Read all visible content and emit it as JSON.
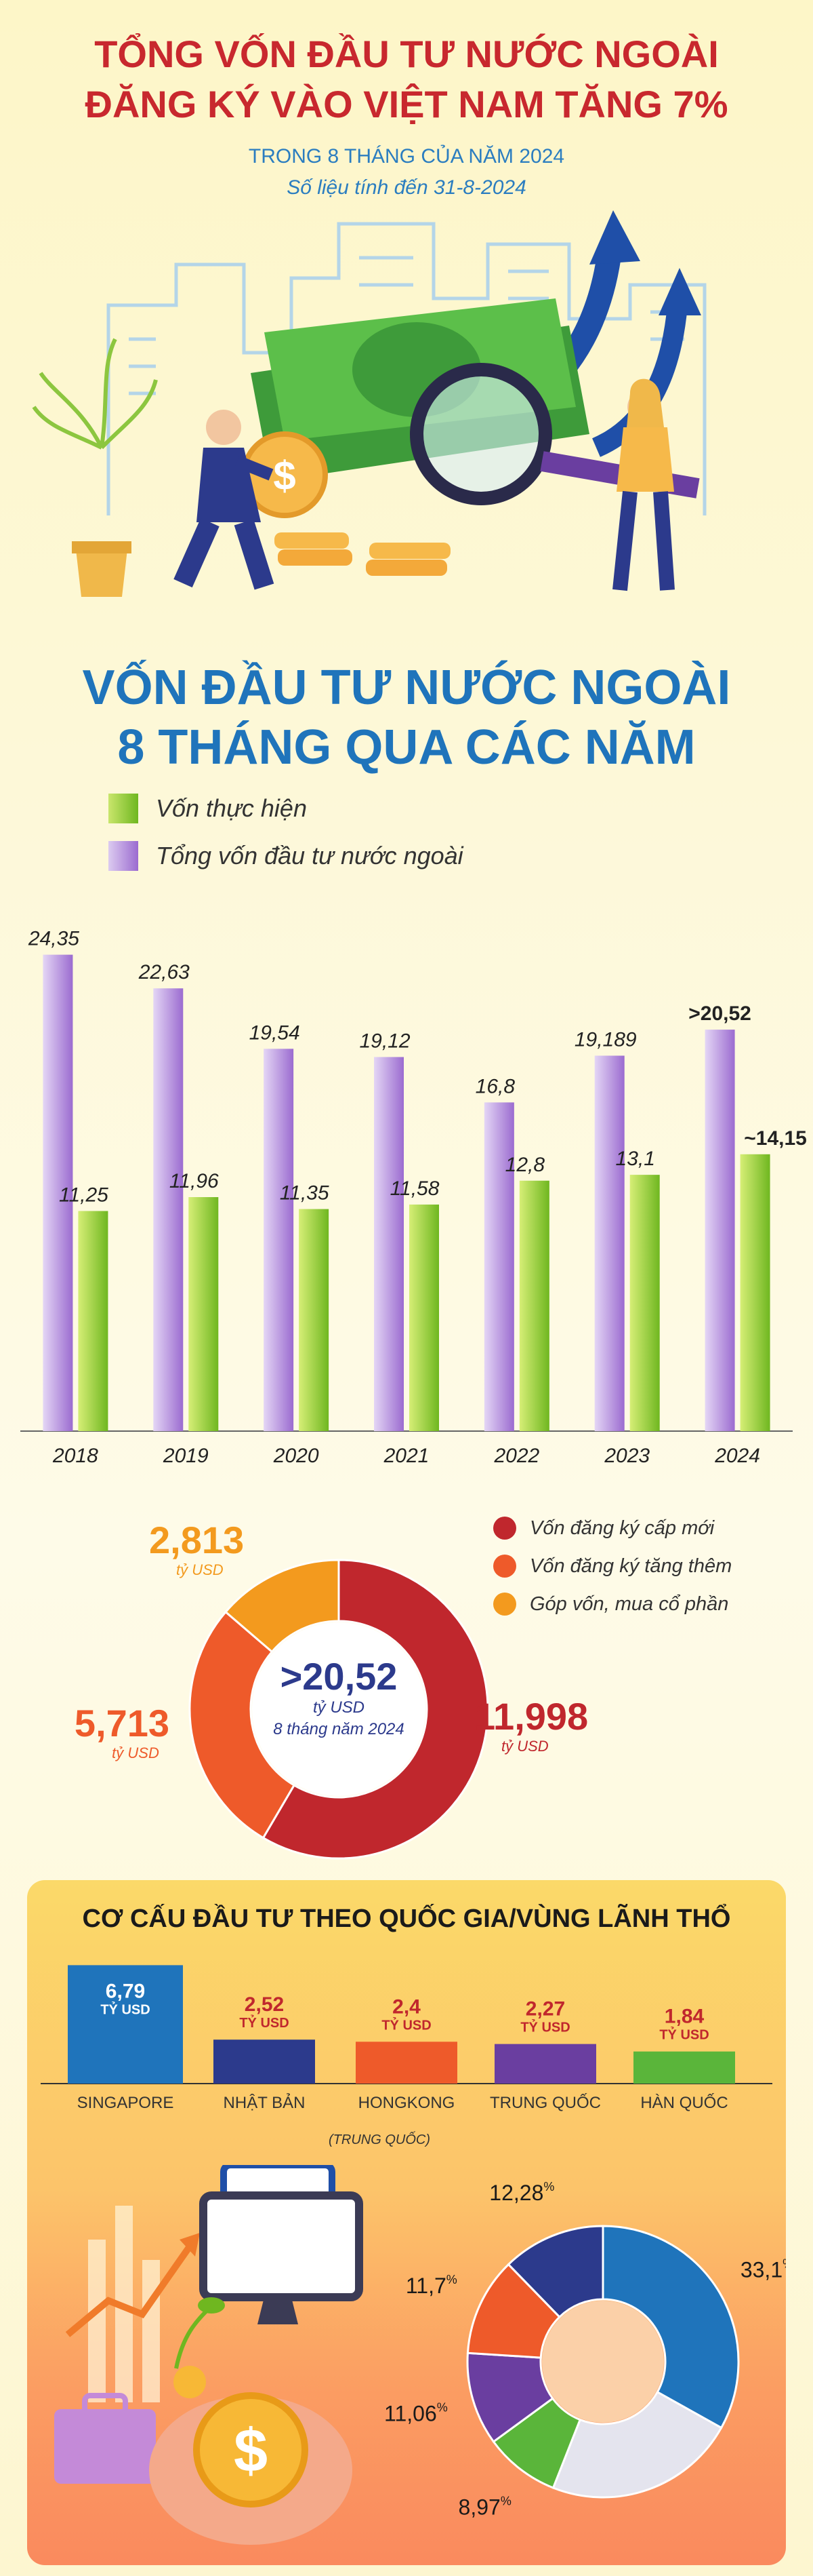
{
  "header": {
    "title_line1": "TỔNG VỐN ĐẦU TƯ NƯỚC NGOÀI",
    "title_line2": "ĐĂNG KÝ VÀO VIỆT NAM TĂNG 7%",
    "subtitle": "TRONG 8 THÁNG CỦA NĂM 2024",
    "note": "Số liệu tính đến 31-8-2024"
  },
  "bar_section": {
    "title_line1": "VỐN ĐẦU TƯ NƯỚC NGOÀI",
    "title_line2": "8 THÁNG QUA CÁC NĂM",
    "legend_realized": "Vốn thực hiện",
    "legend_total": "Tổng vốn đầu tư nước ngoài"
  },
  "donut_section": {
    "center_value": ">20,52",
    "center_unit": "tỷ USD",
    "center_caption": "8 tháng năm 2024",
    "legend": [
      "Vốn đăng ký cấp mới",
      "Vốn đăng ký tăng thêm",
      "Góp vốn, mua cổ phần"
    ]
  },
  "country_section": {
    "title": "CƠ CẤU ĐẦU TƯ THEO QUỐC GIA/VÙNG LÃNH THỔ",
    "sublabel": "(TRUNG QUỐC)"
  },
  "colors": {
    "total_bar": "#9b6bd0",
    "realized_bar": "#6fb720",
    "new": "#c0272d",
    "added": "#ee5a2a",
    "shares": "#f39a1e"
  },
  "chart_data": [
    {
      "type": "bar",
      "title": "VỐN ĐẦU TƯ NƯỚC NGOÀI 8 THÁNG QUA CÁC NĂM",
      "categories": [
        "2018",
        "2019",
        "2020",
        "2021",
        "2022",
        "2023",
        "2024"
      ],
      "series": [
        {
          "name": "Tổng vốn đầu tư nước ngoài",
          "values": [
            24.35,
            22.63,
            19.54,
            19.12,
            16.8,
            19.189,
            20.52
          ],
          "labels": [
            "24,35",
            "22,63",
            "19,54",
            "19,12",
            "16,8",
            "19,189",
            ">20,52"
          ]
        },
        {
          "name": "Vốn thực hiện",
          "values": [
            11.25,
            11.96,
            11.35,
            11.58,
            12.8,
            13.1,
            14.15
          ],
          "labels": [
            "11,25",
            "11,96",
            "11,35",
            "11,58",
            "12,8",
            "13,1",
            "~14,15"
          ]
        }
      ],
      "ylim": [
        0,
        26
      ],
      "grid": false
    },
    {
      "type": "pie",
      "categories": [
        "Vốn đăng ký cấp mới",
        "Vốn đăng ký tăng thêm",
        "Góp vốn, mua cổ phần"
      ],
      "values": [
        11.998,
        5.713,
        2.813
      ],
      "labels": [
        "11,998",
        "5,713",
        "2,813"
      ],
      "unit": "tỷ USD"
    },
    {
      "type": "bar",
      "title": "CƠ CẤU ĐẦU TƯ THEO QUỐC GIA/VÙNG LÃNH THỔ",
      "categories": [
        "SINGAPORE",
        "NHẬT BẢN",
        "HONGKONG",
        "TRUNG QUỐC",
        "HÀN QUỐC"
      ],
      "values": [
        6.79,
        2.52,
        2.4,
        2.27,
        1.84
      ],
      "labels": [
        "6,79",
        "2,52",
        "2,4",
        "2,27",
        "1,84"
      ],
      "unit": "TỶ USD",
      "colors": [
        "#1f74bb",
        "#2c3a8c",
        "#ee5a2a",
        "#6a3ea0",
        "#5ab53a"
      ]
    },
    {
      "type": "pie",
      "values": [
        33.1,
        12.28,
        11.7,
        11.06,
        8.97
      ],
      "labels": [
        "33,1",
        "12,28",
        "11,7",
        "11,06",
        "8,97"
      ],
      "unit": "%",
      "colors": [
        "#1f74bb",
        "#2c3a8c",
        "#ee5a2a",
        "#6a3ea0",
        "#5ab53a"
      ],
      "remainder_color": "#e4e4ee"
    }
  ]
}
